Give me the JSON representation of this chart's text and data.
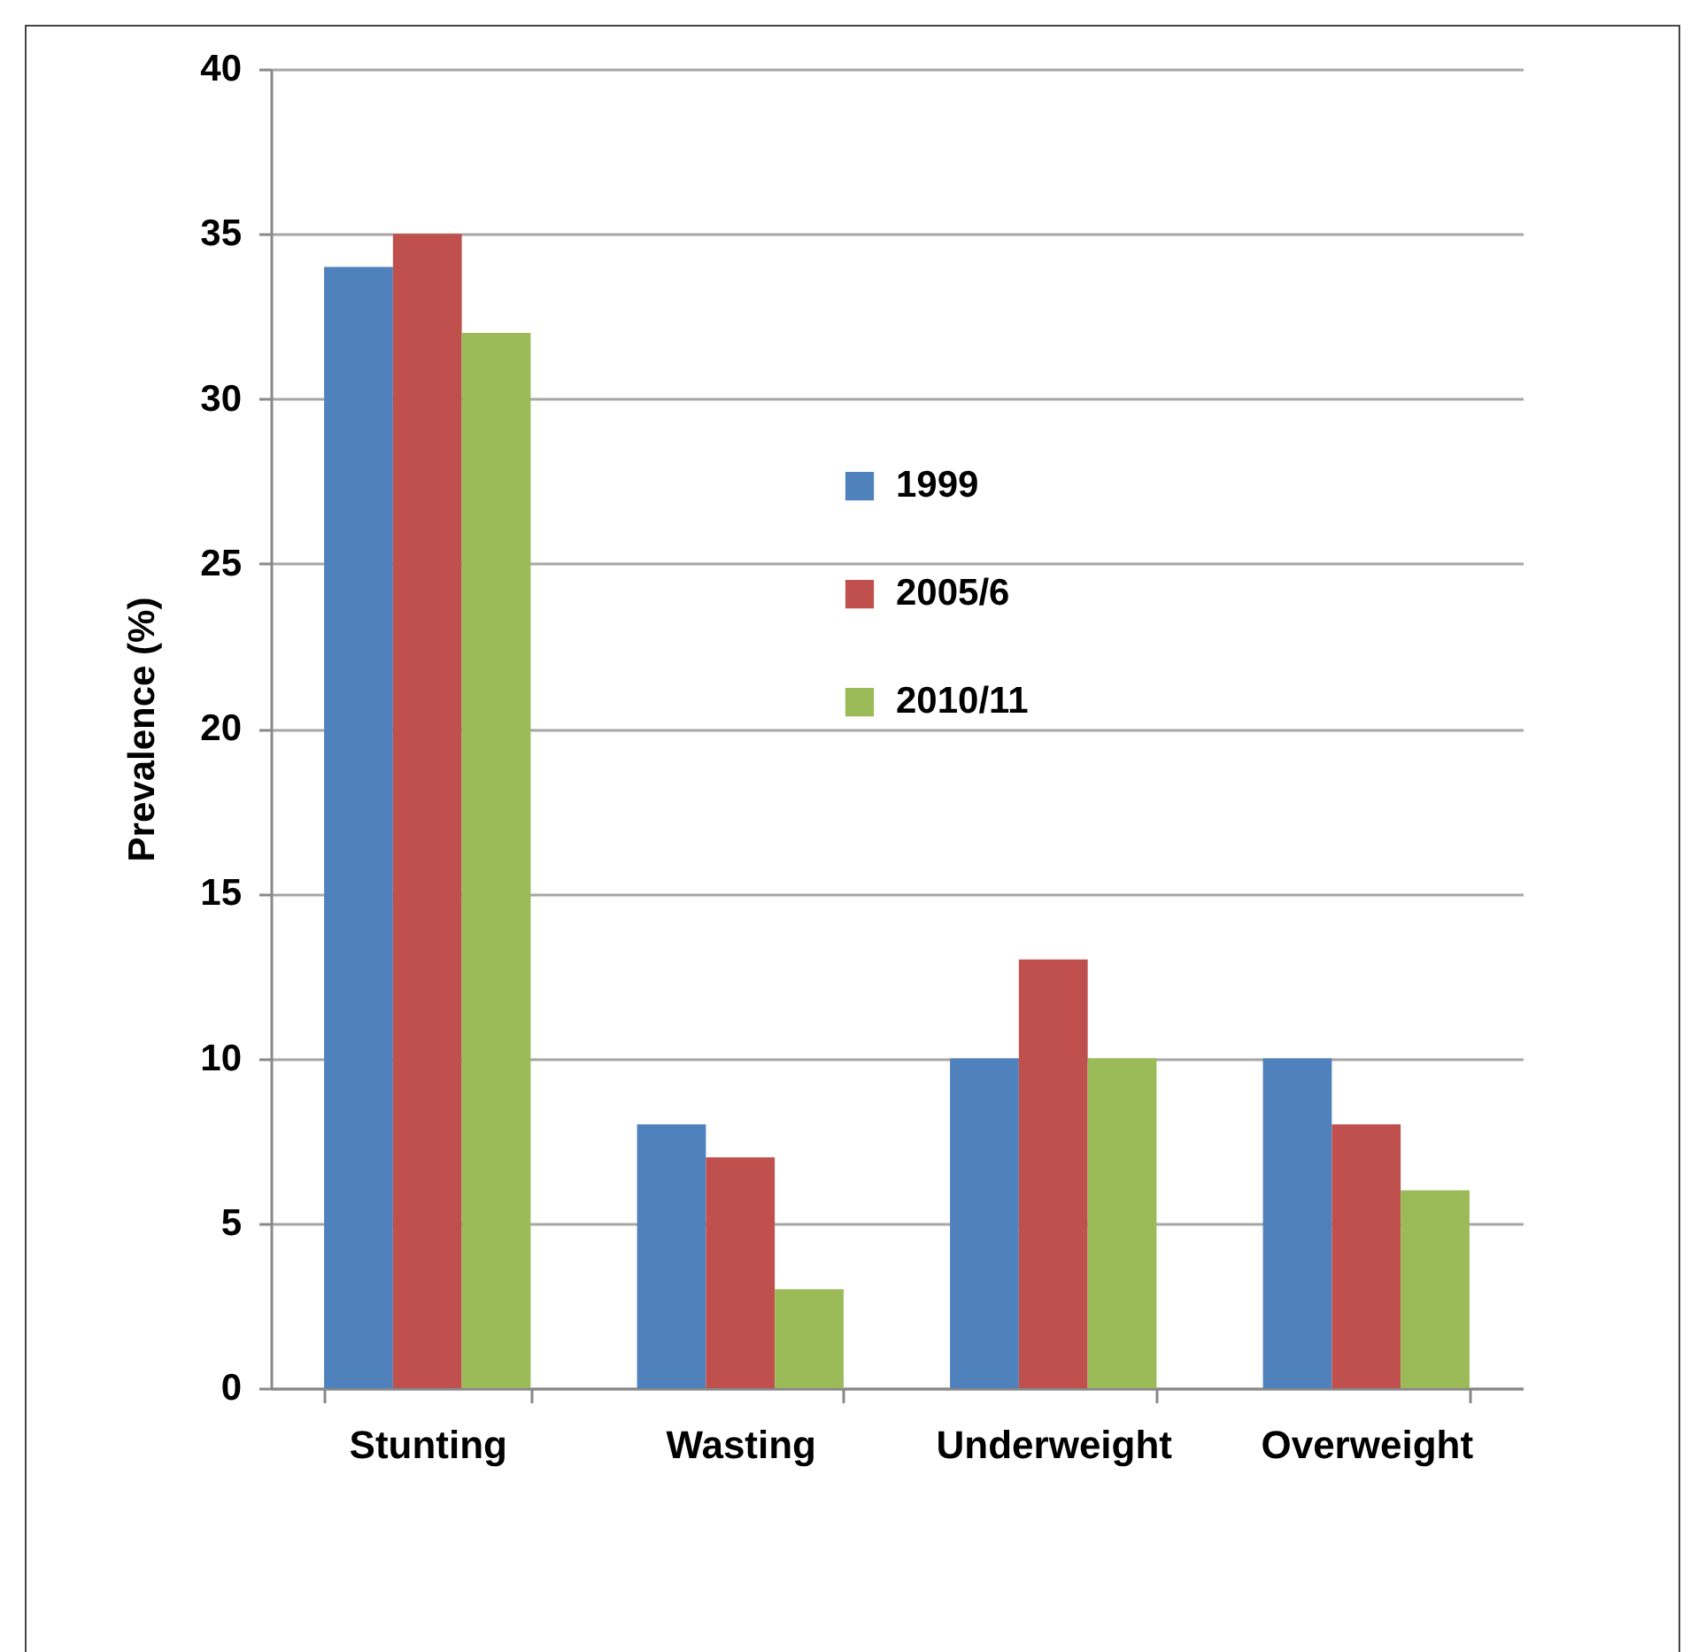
{
  "chart_data": {
    "type": "bar",
    "ylabel": "Prevalence  (%)",
    "categories": [
      "Stunting",
      "Wasting",
      "Underweight",
      "Overweight"
    ],
    "series": [
      {
        "name": "1999",
        "color": "#4f81bd",
        "values": [
          34,
          8,
          10,
          10
        ]
      },
      {
        "name": "2005/6",
        "color": "#c0504d",
        "values": [
          35,
          7,
          13,
          8
        ]
      },
      {
        "name": "2010/11",
        "color": "#9bbb59",
        "values": [
          32,
          3,
          10,
          6
        ]
      }
    ],
    "ylim": [
      0,
      40
    ],
    "yticks": [
      0,
      5,
      10,
      15,
      20,
      25,
      30,
      35,
      40
    ],
    "grid": "y",
    "legend": "top right"
  }
}
